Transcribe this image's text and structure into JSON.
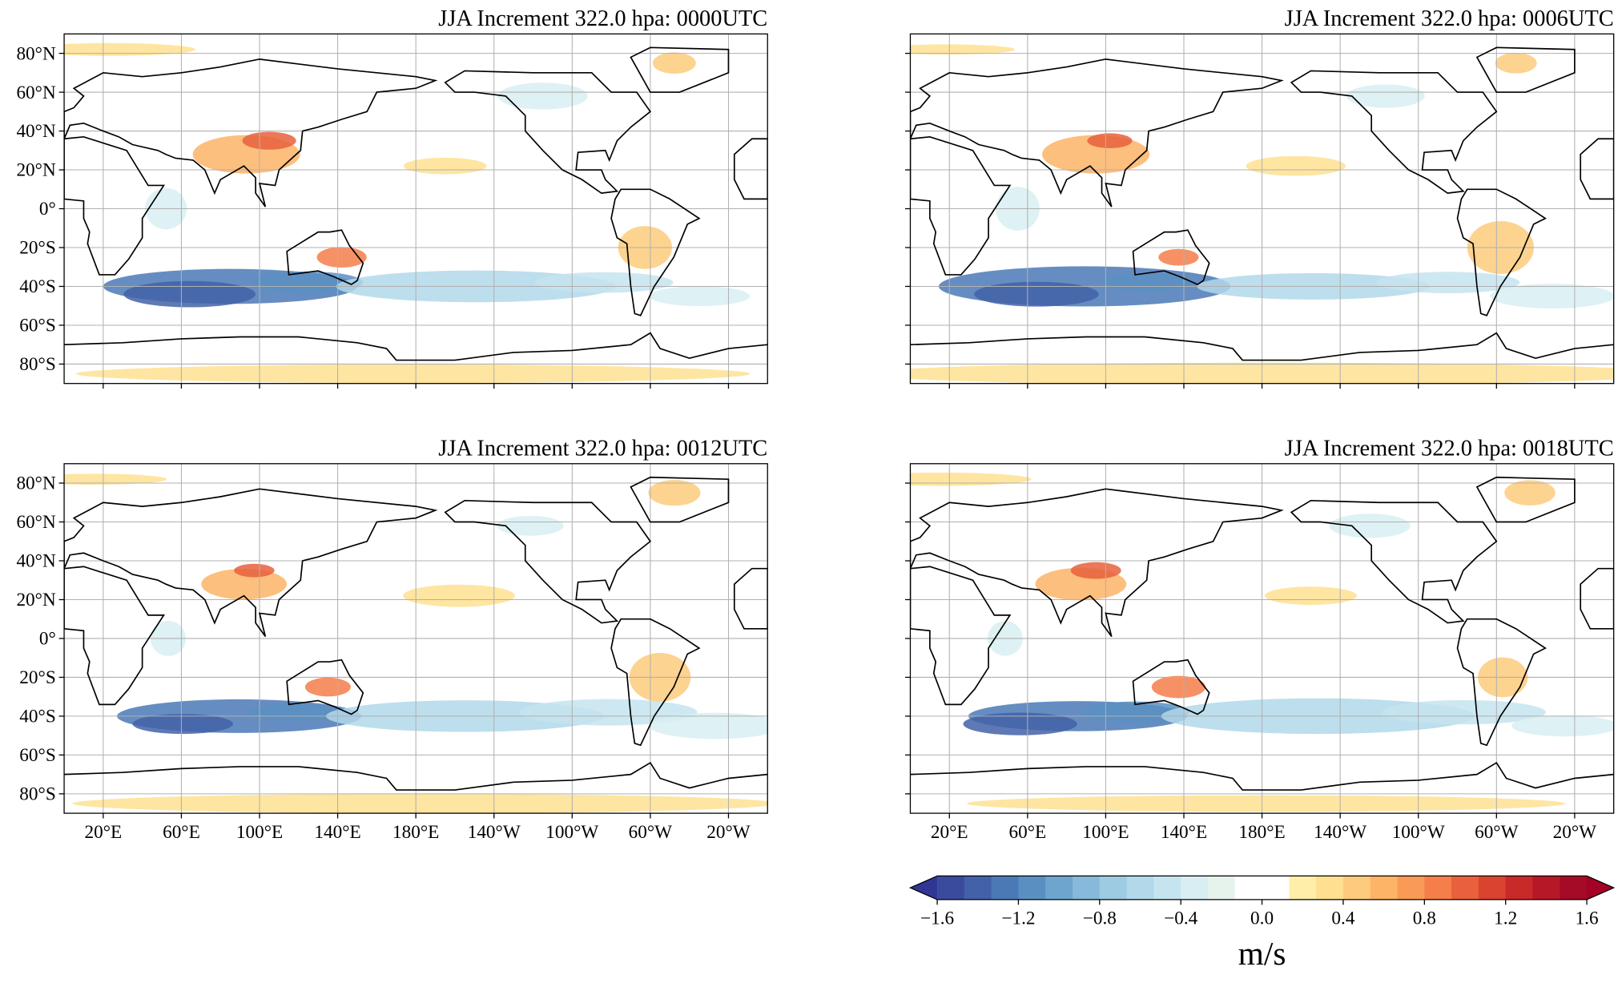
{
  "panels": [
    {
      "title": "JJA Increment 322.0 hpa: 0000UTC"
    },
    {
      "title": "JJA Increment 322.0 hpa: 0006UTC"
    },
    {
      "title": "JJA Increment 322.0 hpa: 0012UTC"
    },
    {
      "title": "JJA Increment 322.0 hpa: 0018UTC"
    }
  ],
  "lon_range": [
    0,
    360
  ],
  "lat_range": [
    -90,
    90
  ],
  "lat_ticks": [
    {
      "value": 80,
      "label": "80°N"
    },
    {
      "value": 60,
      "label": "60°N"
    },
    {
      "value": 40,
      "label": "40°N"
    },
    {
      "value": 20,
      "label": "20°N"
    },
    {
      "value": 0,
      "label": "0°"
    },
    {
      "value": -20,
      "label": "20°S"
    },
    {
      "value": -40,
      "label": "40°S"
    },
    {
      "value": -60,
      "label": "60°S"
    },
    {
      "value": -80,
      "label": "80°S"
    }
  ],
  "lon_ticks": [
    {
      "value": 20,
      "label": "20°E"
    },
    {
      "value": 60,
      "label": "60°E"
    },
    {
      "value": 100,
      "label": "100°E"
    },
    {
      "value": 140,
      "label": "140°E"
    },
    {
      "value": 180,
      "label": "180°E"
    },
    {
      "value": 220,
      "label": "140°W"
    },
    {
      "value": 260,
      "label": "100°W"
    },
    {
      "value": 300,
      "label": "60°W"
    },
    {
      "value": 340,
      "label": "20°W"
    }
  ],
  "colorbar": {
    "label": "m/s",
    "range": [
      -1.6,
      1.6
    ],
    "ticks": [
      {
        "value": -1.6,
        "label": "−1.6"
      },
      {
        "value": -1.2,
        "label": "−1.2"
      },
      {
        "value": -0.8,
        "label": "−0.8"
      },
      {
        "value": -0.4,
        "label": "−0.4"
      },
      {
        "value": 0,
        "label": "0.0"
      },
      0.4,
      0.8,
      1.2,
      1.6
    ],
    "under_color": "#313695",
    "over_color": "#a50026",
    "colors": [
      "#3a4a9c",
      "#4361a8",
      "#4b79b6",
      "#5a8fc2",
      "#6ea5cf",
      "#86b9da",
      "#9dcbe2",
      "#b2d8ea",
      "#c6e4ef",
      "#d8eef2",
      "#e6f3ec",
      "#ffffff",
      "#ffffff",
      "#feeeaa",
      "#fee090",
      "#fdcb7d",
      "#fdb466",
      "#f99a57",
      "#f57e4a",
      "#e8603c",
      "#d9432f",
      "#c72a28",
      "#b61828",
      "#a50a26"
    ]
  }
}
